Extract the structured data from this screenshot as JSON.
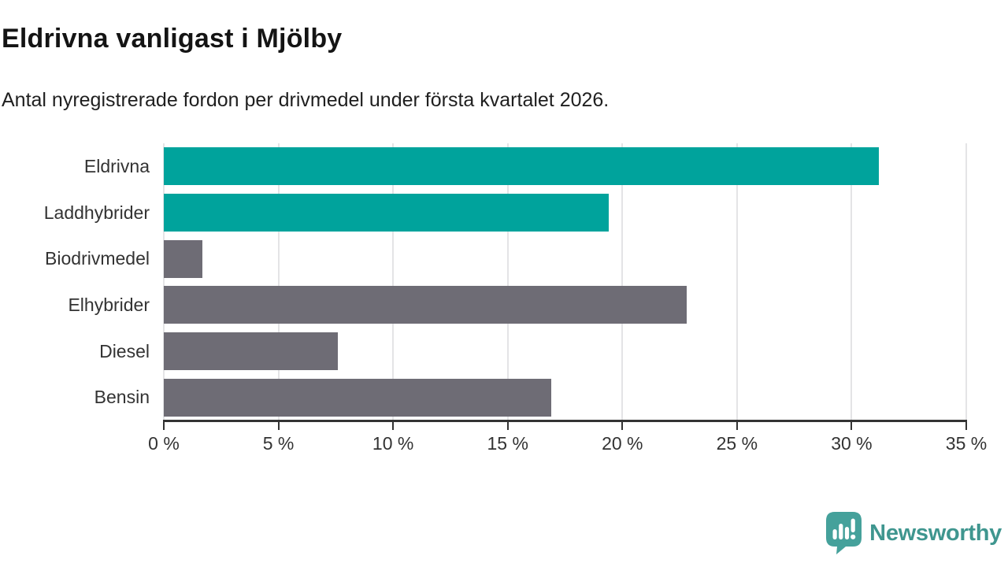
{
  "header": {
    "title": "Eldrivna vanligast i Mjölby",
    "subtitle": "Antal nyregistrerade fordon per drivmedel under första kvartalet 2026."
  },
  "chart_data": {
    "type": "bar",
    "orientation": "horizontal",
    "title": "Eldrivna vanligast i Mjölby",
    "categories": [
      "Eldrivna",
      "Laddhybrider",
      "Biodrivmedel",
      "Elhybrider",
      "Diesel",
      "Bensin"
    ],
    "values": [
      31.2,
      19.4,
      1.7,
      22.8,
      7.6,
      16.9
    ],
    "unit": "%",
    "bar_colors": [
      "#00a39c",
      "#00a39c",
      "#6e6c75",
      "#6e6c75",
      "#6e6c75",
      "#6e6c75"
    ],
    "xlabel": "",
    "ylabel": "",
    "xlim": [
      0,
      35
    ],
    "x_tick_values": [
      0,
      5,
      10,
      15,
      20,
      25,
      30,
      35
    ],
    "x_tick_labels": [
      "0 %",
      "5 %",
      "10 %",
      "15 %",
      "20 %",
      "25 %",
      "30 %",
      "35 %"
    ],
    "grid": "vertical",
    "legend": "none"
  },
  "footer": {
    "logo_text": "Newsworthy"
  },
  "colors": {
    "accent_teal": "#00a39c",
    "bar_gray": "#6e6c75",
    "logo_text_teal": "#3f968f",
    "logo_icon_teal": "#45a19b",
    "axis": "#333333",
    "gridline": "#e4e4e6",
    "title_text": "#141414"
  }
}
